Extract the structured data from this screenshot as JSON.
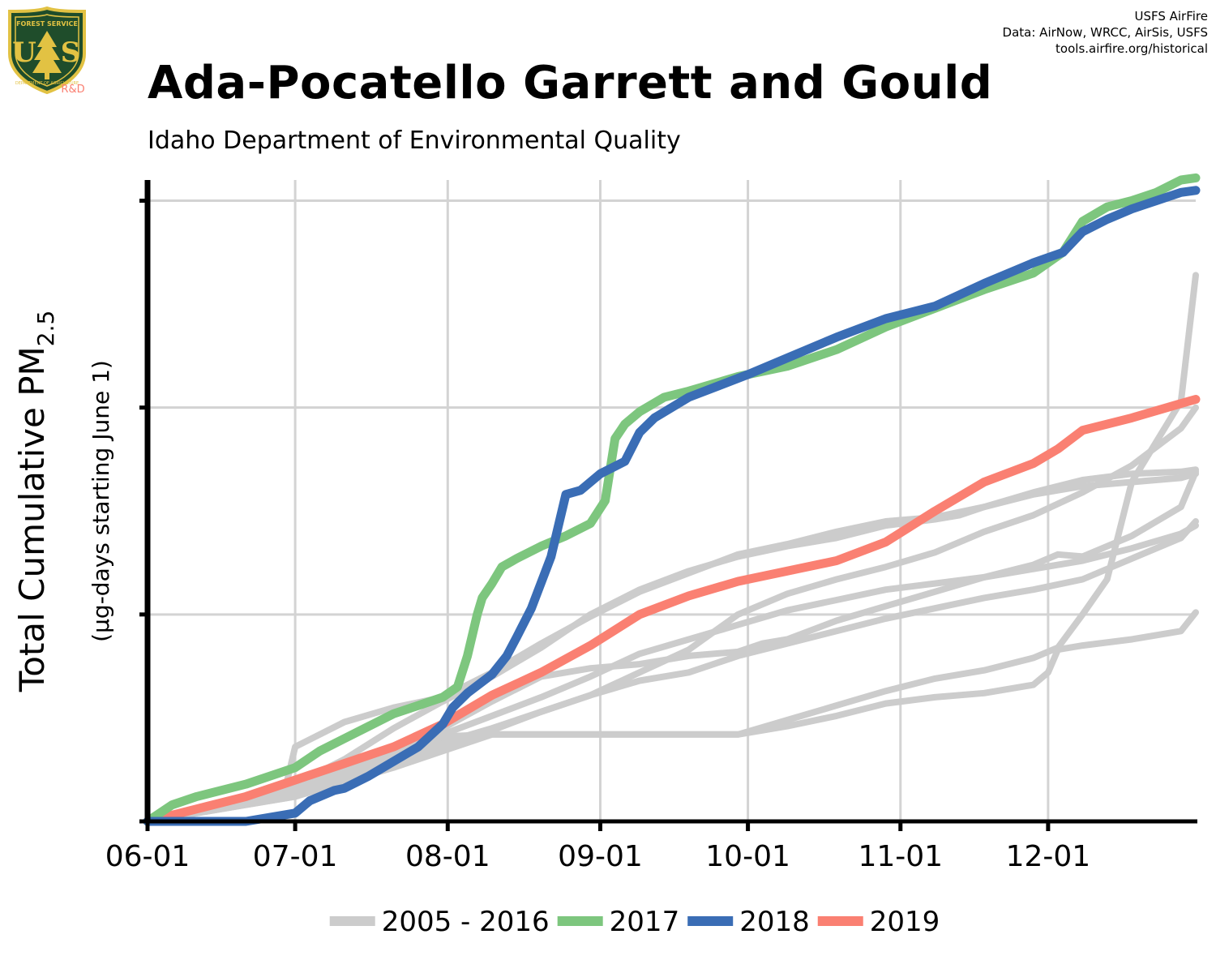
{
  "header": {
    "title": "Ada-Pocatello Garrett and Gould",
    "subtitle": "Idaho Department of Environmental Quality",
    "credits": [
      "USFS AirFire",
      "Data: AirNow, WRCC, AirSis, USFS",
      "tools.airfire.org/historical"
    ]
  },
  "logo": {
    "text_top": "FOREST SERVICE",
    "text_bottom": "DEPARTMENT OF AGRICULTURE",
    "initials_left": "U",
    "initials_right": "S",
    "rd": "R&D",
    "icon": "usfs-shield-icon"
  },
  "colors": {
    "historical": "#cccccc",
    "y2017": "#7dc67e",
    "y2018": "#3a6db5",
    "y2019": "#fa8072",
    "grid": "#d3d3d3",
    "axis": "#000000"
  },
  "chart_data": {
    "type": "line",
    "title": "Ada-Pocatello Garrett and Gould",
    "subtitle": "Idaho Department of Environmental Quality",
    "ylabel": "Total Cumulative PM",
    "ylabel_sub": "2.5",
    "ylabel2": "(µg-days starting June 1)",
    "xlabel": "",
    "x_ticks": [
      "06-01",
      "07-01",
      "08-01",
      "09-01",
      "10-01",
      "11-01",
      "12-01"
    ],
    "x_tick_days": [
      0,
      30,
      61,
      92,
      122,
      153,
      183
    ],
    "xlim": [
      0,
      213
    ],
    "ylim": [
      0,
      3100
    ],
    "y_gridlines": [
      1000,
      2000,
      3000
    ],
    "y_tick_labels_shown": false,
    "grid": true,
    "legend_position": "bottom",
    "legend": [
      "2005 - 2016",
      "2017",
      "2018",
      "2019"
    ],
    "series": [
      {
        "name": "2017",
        "color": "#7dc67e",
        "x": [
          0,
          5,
          10,
          20,
          30,
          35,
          40,
          45,
          50,
          55,
          60,
          63,
          65,
          67,
          68,
          70,
          72,
          75,
          80,
          85,
          90,
          93,
          95,
          97,
          100,
          105,
          110,
          120,
          130,
          140,
          150,
          160,
          170,
          180,
          186,
          190,
          195,
          200,
          205,
          210,
          213
        ],
        "y": [
          0,
          80,
          120,
          180,
          260,
          340,
          400,
          460,
          520,
          560,
          600,
          650,
          800,
          1000,
          1080,
          1150,
          1230,
          1270,
          1330,
          1380,
          1440,
          1550,
          1850,
          1920,
          1980,
          2050,
          2080,
          2150,
          2200,
          2280,
          2390,
          2480,
          2570,
          2650,
          2750,
          2900,
          2970,
          3000,
          3040,
          3100,
          3110
        ]
      },
      {
        "name": "2018",
        "color": "#3a6db5",
        "x": [
          0,
          20,
          30,
          33,
          38,
          40,
          45,
          50,
          55,
          60,
          62,
          65,
          70,
          73,
          75,
          78,
          82,
          85,
          88,
          92,
          97,
          100,
          103,
          110,
          122,
          130,
          140,
          150,
          160,
          170,
          180,
          186,
          190,
          195,
          200,
          205,
          210,
          213
        ],
        "y": [
          0,
          0,
          40,
          100,
          150,
          160,
          220,
          290,
          360,
          470,
          550,
          620,
          710,
          800,
          890,
          1030,
          1280,
          1580,
          1600,
          1680,
          1740,
          1880,
          1950,
          2050,
          2160,
          2240,
          2340,
          2430,
          2490,
          2600,
          2700,
          2750,
          2850,
          2910,
          2960,
          3000,
          3040,
          3050
        ]
      },
      {
        "name": "2019",
        "color": "#fa8072",
        "x": [
          0,
          10,
          20,
          30,
          40,
          50,
          60,
          65,
          70,
          80,
          90,
          100,
          110,
          120,
          130,
          140,
          150,
          160,
          170,
          180,
          185,
          190,
          200,
          210,
          213
        ],
        "y": [
          0,
          60,
          120,
          200,
          280,
          360,
          470,
          540,
          610,
          720,
          850,
          1000,
          1090,
          1160,
          1210,
          1260,
          1350,
          1500,
          1640,
          1730,
          1800,
          1890,
          1950,
          2020,
          2040
        ]
      },
      {
        "name": "2005 - 2016",
        "color": "#cccccc",
        "x": [
          0,
          15,
          28,
          30,
          40,
          50,
          60,
          70,
          80,
          90,
          100,
          110,
          120,
          130,
          140,
          150,
          160,
          170,
          180,
          190,
          200,
          210,
          213
        ],
        "y": [
          0,
          70,
          160,
          360,
          480,
          550,
          600,
          720,
          860,
          990,
          1110,
          1200,
          1290,
          1340,
          1400,
          1450,
          1470,
          1520,
          1590,
          1650,
          1680,
          1690,
          1700
        ]
      },
      {
        "name": "2005 - 2016",
        "color": "#cccccc",
        "x": [
          0,
          10,
          20,
          30,
          40,
          50,
          60,
          70,
          80,
          90,
          100,
          110,
          120,
          130,
          140,
          150,
          160,
          165,
          170,
          180,
          190,
          200,
          210,
          213
        ],
        "y": [
          0,
          50,
          110,
          180,
          300,
          450,
          580,
          700,
          840,
          1000,
          1120,
          1210,
          1280,
          1330,
          1370,
          1430,
          1460,
          1480,
          1520,
          1580,
          1620,
          1640,
          1660,
          1680
        ]
      },
      {
        "name": "2005 - 2016",
        "color": "#cccccc",
        "x": [
          0,
          10,
          20,
          30,
          40,
          50,
          60,
          70,
          80,
          90,
          100,
          110,
          120,
          130,
          140,
          150,
          160,
          170,
          180,
          190,
          200,
          210,
          213
        ],
        "y": [
          0,
          50,
          100,
          150,
          230,
          330,
          420,
          510,
          600,
          700,
          810,
          880,
          950,
          1020,
          1070,
          1120,
          1150,
          1180,
          1220,
          1260,
          1320,
          1390,
          1430
        ]
      },
      {
        "name": "2005 - 2016",
        "color": "#cccccc",
        "x": [
          0,
          10,
          20,
          30,
          40,
          50,
          60,
          70,
          80,
          90,
          100,
          110,
          120,
          130,
          140,
          150,
          160,
          170,
          180,
          190,
          200,
          210,
          213
        ],
        "y": [
          0,
          60,
          110,
          160,
          240,
          310,
          380,
          450,
          530,
          610,
          720,
          830,
          1000,
          1100,
          1170,
          1230,
          1300,
          1400,
          1480,
          1590,
          1720,
          1900,
          2000
        ]
      },
      {
        "name": "2005 - 2016",
        "color": "#cccccc",
        "x": [
          0,
          10,
          20,
          30,
          40,
          50,
          60,
          70,
          80,
          90,
          100,
          110,
          120,
          130,
          140,
          150,
          160,
          170,
          180,
          190,
          200,
          210,
          213
        ],
        "y": [
          0,
          50,
          100,
          160,
          220,
          280,
          350,
          440,
          530,
          610,
          680,
          720,
          800,
          860,
          920,
          980,
          1030,
          1080,
          1120,
          1170,
          1270,
          1370,
          1450
        ]
      },
      {
        "name": "2005 - 2016",
        "color": "#cccccc",
        "x": [
          0,
          10,
          20,
          30,
          40,
          50,
          60,
          70,
          80,
          90,
          100,
          110,
          120,
          125,
          130,
          140,
          150,
          160,
          170,
          180,
          185,
          190,
          200,
          210,
          213
        ],
        "y": [
          0,
          60,
          110,
          160,
          250,
          350,
          450,
          580,
          700,
          740,
          760,
          800,
          820,
          860,
          880,
          970,
          1040,
          1110,
          1180,
          1240,
          1290,
          1280,
          1380,
          1520,
          1690
        ]
      },
      {
        "name": "2005 - 2016",
        "color": "#cccccc",
        "x": [
          0,
          10,
          20,
          30,
          40,
          50,
          60,
          70,
          80,
          90,
          100,
          110,
          120,
          130,
          140,
          150,
          160,
          170,
          180,
          185,
          190,
          195,
          200,
          210,
          213
        ],
        "y": [
          0,
          40,
          80,
          120,
          200,
          300,
          410,
          420,
          420,
          420,
          420,
          420,
          420,
          490,
          560,
          630,
          690,
          730,
          790,
          840,
          1000,
          1170,
          1640,
          2030,
          2640
        ]
      },
      {
        "name": "2005 - 2016",
        "color": "#cccccc",
        "x": [
          0,
          10,
          20,
          30,
          40,
          50,
          60,
          70,
          80,
          90,
          100,
          110,
          120,
          130,
          140,
          150,
          160,
          170,
          180,
          183,
          185,
          190,
          200,
          210,
          213
        ],
        "y": [
          0,
          40,
          80,
          120,
          190,
          260,
          340,
          420,
          420,
          420,
          420,
          420,
          420,
          460,
          510,
          570,
          600,
          620,
          660,
          720,
          830,
          850,
          880,
          920,
          1010
        ]
      }
    ]
  }
}
